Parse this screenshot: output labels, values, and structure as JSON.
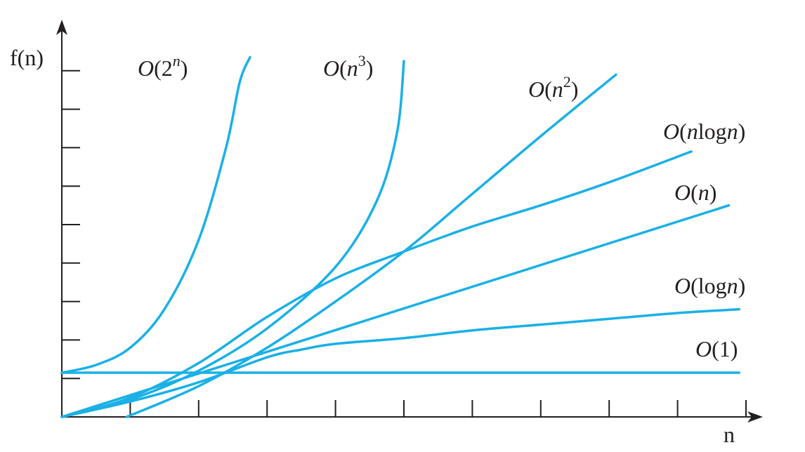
{
  "chart_data": {
    "type": "line",
    "title": "",
    "xlabel": "n",
    "ylabel": "f(n)",
    "grid": false,
    "legend": "inline labels at curve ends",
    "line_color": "#1ab0e6",
    "axis_color": "#231f20",
    "x_ticks": 10,
    "y_ticks": 9,
    "series": [
      {
        "name": "O(2^n)",
        "label": {
          "prefix": "O(",
          "base": "2",
          "base_italic": false,
          "sup": "n",
          "sup_italic": true,
          "suffix": ")"
        },
        "points": [
          [
            0,
            1.15
          ],
          [
            0.5,
            1.35
          ],
          [
            1,
            1.8
          ],
          [
            1.5,
            2.8
          ],
          [
            2,
            4.6
          ],
          [
            2.4,
            7.0
          ],
          [
            2.6,
            8.7
          ],
          [
            2.75,
            9.35
          ]
        ]
      },
      {
        "name": "O(n^3)",
        "label": {
          "prefix": "O(",
          "base": "n",
          "base_italic": true,
          "sup": "3",
          "sup_italic": false,
          "suffix": ")"
        },
        "points": [
          [
            0,
            0
          ],
          [
            1,
            0.45
          ],
          [
            2,
            1.2
          ],
          [
            3,
            2.3
          ],
          [
            4,
            3.9
          ],
          [
            4.6,
            5.6
          ],
          [
            4.9,
            7.4
          ],
          [
            5.0,
            9.25
          ]
        ]
      },
      {
        "name": "O(n^2)",
        "label": {
          "prefix": "O(",
          "base": "n",
          "base_italic": true,
          "sup": "2",
          "sup_italic": false,
          "suffix": ")"
        },
        "points": [
          [
            0.95,
            0
          ],
          [
            2,
            0.8
          ],
          [
            3,
            1.8
          ],
          [
            4,
            3.0
          ],
          [
            5,
            4.3
          ],
          [
            6,
            5.8
          ],
          [
            7,
            7.3
          ],
          [
            8.1,
            8.9
          ]
        ]
      },
      {
        "name": "O(nlogn)",
        "label": {
          "prefix": "O(",
          "base": "n",
          "base_italic": true,
          "sup": "",
          "sup_italic": false,
          "suffix": "logn)",
          "suffix_italic_n": true
        },
        "points": [
          [
            0,
            0
          ],
          [
            1,
            0.5
          ],
          [
            2,
            1.4
          ],
          [
            3,
            2.6
          ],
          [
            4,
            3.6
          ],
          [
            5,
            4.3
          ],
          [
            6,
            4.95
          ],
          [
            7,
            5.5
          ],
          [
            8,
            6.1
          ],
          [
            9.2,
            6.9
          ]
        ]
      },
      {
        "name": "O(n)",
        "label": {
          "prefix": "O(",
          "base": "n",
          "base_italic": true,
          "sup": "",
          "sup_italic": false,
          "suffix": ")"
        },
        "points": [
          [
            0,
            0
          ],
          [
            9.75,
            5.5
          ]
        ]
      },
      {
        "name": "O(logn)",
        "label": {
          "prefix": "O(log",
          "base": "n",
          "base_italic": true,
          "sup": "",
          "sup_italic": false,
          "suffix": ")"
        },
        "points": [
          [
            0,
            0
          ],
          [
            1,
            0.4
          ],
          [
            2,
            0.9
          ],
          [
            3,
            1.55
          ],
          [
            3.5,
            1.75
          ],
          [
            4,
            1.9
          ],
          [
            5,
            2.05
          ],
          [
            6,
            2.25
          ],
          [
            7,
            2.4
          ],
          [
            8,
            2.55
          ],
          [
            9,
            2.7
          ],
          [
            9.9,
            2.8
          ]
        ]
      },
      {
        "name": "O(1)",
        "label": {
          "prefix": "O(",
          "base": "1",
          "base_italic": false,
          "sup": "",
          "sup_italic": false,
          "suffix": ")"
        },
        "points": [
          [
            0,
            1.15
          ],
          [
            9.9,
            1.15
          ]
        ]
      }
    ]
  }
}
